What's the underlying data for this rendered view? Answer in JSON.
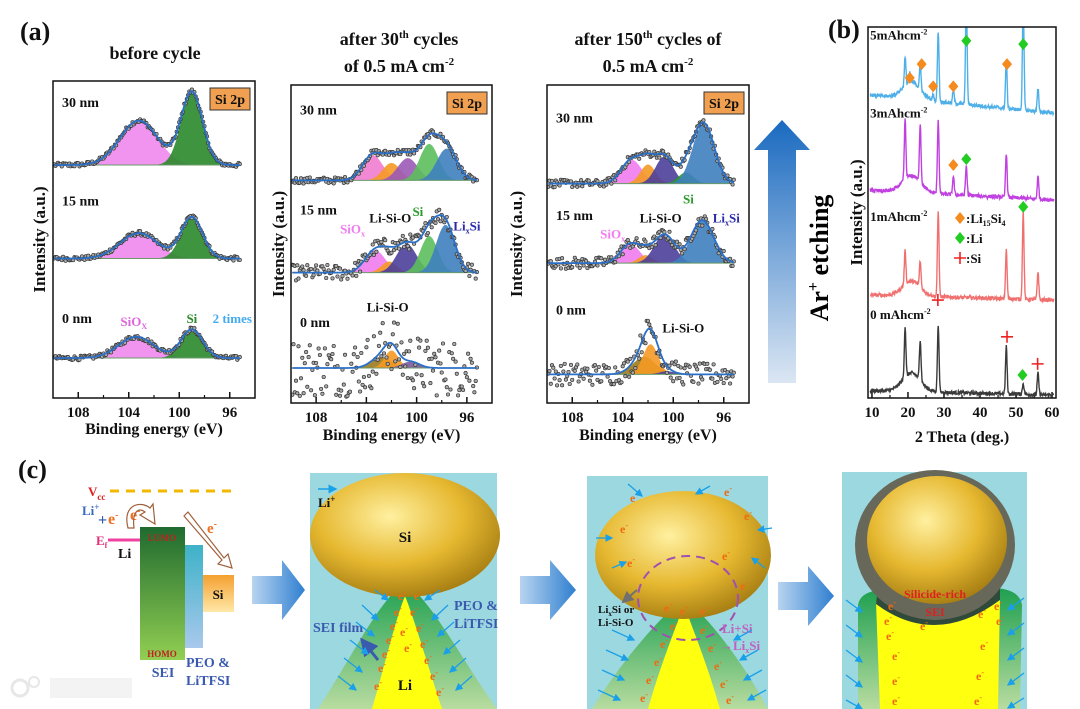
{
  "figure": {
    "panel_labels": {
      "a": "(a)",
      "b": "(b)",
      "c": "(c)"
    },
    "ar_etching": {
      "main": "Ar",
      "sup": "+",
      "rest": " etching"
    },
    "watermark": "大数跨境"
  },
  "chart_data": [
    {
      "type": "line",
      "id": "xps-before-cycle",
      "title_lines": [
        {
          "pre": "before cycle",
          "sup": "",
          "post": ""
        }
      ],
      "badge": "Si 2p",
      "xlabel": "Binding energy (eV)",
      "ylabel": "Intensity (a.u.)",
      "xlim": [
        110,
        94
      ],
      "ylim": [
        0,
        10
      ],
      "xticks": [
        108,
        104,
        100,
        96
      ],
      "xminor": [
        106,
        102,
        98
      ],
      "spectra": [
        {
          "label": "30 nm",
          "offset": 7.35,
          "noise": 0.07,
          "components": [
            {
              "name": "SiOx",
              "center": 103.2,
              "height": 1.4,
              "sigma": 1.5,
              "color": "#ee88ee"
            },
            {
              "name": "Si",
              "center": 99.0,
              "height": 2.3,
              "sigma": 0.85,
              "color": "#2a8a2a"
            }
          ]
        },
        {
          "label": "15 nm",
          "offset": 4.4,
          "noise": 0.07,
          "components": [
            {
              "name": "SiOx",
              "center": 103.2,
              "height": 0.8,
              "sigma": 1.5,
              "color": "#ee88ee"
            },
            {
              "name": "Si",
              "center": 99.0,
              "height": 1.3,
              "sigma": 0.85,
              "color": "#2a8a2a"
            }
          ]
        },
        {
          "label": "0 nm",
          "offset": 1.26,
          "noise": 0.07,
          "components": [
            {
              "name": "SiOx",
              "center": 103.4,
              "height": 0.67,
              "sigma": 1.4,
              "color": "#ee88ee"
            },
            {
              "name": "Si",
              "center": 99.0,
              "height": 0.9,
              "sigma": 0.85,
              "color": "#2a8a2a"
            }
          ]
        }
      ],
      "annotations": [
        {
          "text": "SiO",
          "sub": "X",
          "x": 103.6,
          "y": 2.4,
          "color": "#dd66dd"
        },
        {
          "text": "Si",
          "sub": "",
          "x": 99.0,
          "y": 2.5,
          "color": "#2a8a2a"
        },
        {
          "text": "2 times",
          "sub": "",
          "x": 95.8,
          "y": 2.5,
          "color": "#44aaee"
        }
      ]
    },
    {
      "type": "line",
      "id": "xps-after-30-cycles",
      "title_lines": [
        {
          "pre": "after 30",
          "sup": "th",
          "post": " cycles"
        },
        {
          "pre": "of 0.5 mA cm",
          "sup": "-2",
          "post": ""
        }
      ],
      "badge": "Si 2p",
      "xlabel": "Binding energy (eV)",
      "ylabel": "Intensity (a.u.)",
      "xlim": [
        110,
        94
      ],
      "ylim": [
        0,
        10
      ],
      "xticks": [
        108,
        104,
        100,
        96
      ],
      "xminor": [
        106,
        102,
        98
      ],
      "spectra": [
        {
          "label": "30 nm",
          "offset": 7.0,
          "noise": 0.1,
          "components": [
            {
              "name": "SiOx",
              "center": 103.5,
              "height": 0.8,
              "sigma": 0.8,
              "color": "#f07cd0"
            },
            {
              "name": "Li-Si-O",
              "center": 102.0,
              "height": 0.55,
              "sigma": 0.7,
              "color": "#f59a23"
            },
            {
              "name": "Li-Si-O-2",
              "center": 100.7,
              "height": 0.7,
              "sigma": 0.8,
              "color": "#9b59b6"
            },
            {
              "name": "Si",
              "center": 99.0,
              "height": 1.15,
              "sigma": 0.75,
              "color": "#5cbf5c"
            },
            {
              "name": "LixSi",
              "center": 97.6,
              "height": 1.0,
              "sigma": 0.8,
              "color": "#3f7fbf"
            }
          ]
        },
        {
          "label": "15 nm",
          "offset": 4.1,
          "noise": 0.25,
          "components": [
            {
              "name": "SiOx",
              "center": 103.3,
              "height": 0.7,
              "sigma": 0.8,
              "color": "#f07cf0"
            },
            {
              "name": "Li-Si-O",
              "center": 102.2,
              "height": 0.35,
              "sigma": 0.6,
              "color": "#f59a23"
            },
            {
              "name": "Li-Si-O-2",
              "center": 100.8,
              "height": 0.9,
              "sigma": 0.8,
              "color": "#4b3f9a"
            },
            {
              "name": "Si",
              "center": 99.0,
              "height": 1.15,
              "sigma": 0.7,
              "color": "#5cbf5c"
            },
            {
              "name": "LixSi",
              "center": 97.7,
              "height": 1.5,
              "sigma": 0.75,
              "color": "#3f7fbf"
            }
          ]
        },
        {
          "label": "0 nm",
          "offset": 1.1,
          "noise": 0.9,
          "components": [
            {
              "name": "Li-Si-O-1",
              "center": 102.8,
              "height": 0.35,
              "sigma": 0.8,
              "color": "#9c7a1e"
            },
            {
              "name": "Li-Si-O",
              "center": 102.0,
              "height": 0.55,
              "sigma": 0.55,
              "color": "#f59a23"
            },
            {
              "name": "Li-Si-O-2",
              "center": 100.5,
              "height": 0.2,
              "sigma": 0.7,
              "color": "#7a5a9a"
            }
          ]
        }
      ],
      "annotations": [
        {
          "text": "SiO",
          "sub": "x",
          "x": 105.1,
          "y": 5.45,
          "color": "#f07cf0"
        },
        {
          "text": "Li-Si-O",
          "sub": "",
          "x": 102.1,
          "y": 5.8,
          "color": "#111111"
        },
        {
          "text": "Si",
          "sub": "",
          "x": 99.9,
          "y": 6.0,
          "color": "#2a9a2a"
        },
        {
          "text": "Li",
          "sub": "x",
          "tail": "Si",
          "x": 96.0,
          "y": 5.55,
          "color": "#2a2aaa"
        },
        {
          "text": "Li-Si-O",
          "sub": "",
          "x": 102.3,
          "y": 3.0,
          "color": "#111111"
        }
      ]
    },
    {
      "type": "line",
      "id": "xps-after-150-cycles",
      "title_lines": [
        {
          "pre": "after 150",
          "sup": "th",
          "post": " cycles of"
        },
        {
          "pre": "0.5 mA cm",
          "sup": "-2",
          "post": ""
        }
      ],
      "badge": "Si 2p",
      "xlabel": "Binding energy (eV)",
      "ylabel": "Intensity (a.u.)",
      "xlim": [
        110,
        94
      ],
      "ylim": [
        0,
        10
      ],
      "xticks": [
        108,
        104,
        100,
        96
      ],
      "xminor": [
        106,
        102,
        98
      ],
      "spectra": [
        {
          "label": "30 nm",
          "offset": 6.9,
          "noise": 0.12,
          "components": [
            {
              "name": "SiOx",
              "center": 103.3,
              "height": 0.75,
              "sigma": 0.8,
              "color": "#f07cf0"
            },
            {
              "name": "Li-Si-O",
              "center": 102.0,
              "height": 0.6,
              "sigma": 0.6,
              "color": "#f59a23"
            },
            {
              "name": "Li-Si-O-2",
              "center": 100.7,
              "height": 0.85,
              "sigma": 0.7,
              "color": "#4b3f9a"
            },
            {
              "name": "Si",
              "center": 99.0,
              "height": 0.35,
              "sigma": 0.6,
              "color": "#2a9a2a"
            },
            {
              "name": "LixSi",
              "center": 97.6,
              "height": 1.9,
              "sigma": 0.85,
              "color": "#3f7fbf"
            }
          ]
        },
        {
          "label": "15 nm",
          "offset": 4.4,
          "noise": 0.18,
          "components": [
            {
              "name": "SiOx",
              "center": 103.4,
              "height": 0.6,
              "sigma": 0.75,
              "color": "#f07cf0"
            },
            {
              "name": "Li-Si-O",
              "center": 102.2,
              "height": 0.25,
              "sigma": 0.55,
              "color": "#f59a23"
            },
            {
              "name": "Li-Si-O-2",
              "center": 100.7,
              "height": 0.9,
              "sigma": 0.8,
              "color": "#4b3f9a"
            },
            {
              "name": "LixSi",
              "center": 97.7,
              "height": 1.35,
              "sigma": 0.9,
              "color": "#3f7fbf"
            }
          ]
        },
        {
          "label": "0 nm",
          "offset": 0.9,
          "noise": 0.35,
          "components": [
            {
              "name": "Li-Si-O-1",
              "center": 102.3,
              "height": 0.55,
              "sigma": 0.9,
              "color": "#9c7a1e"
            },
            {
              "name": "Li-Si-O",
              "center": 101.8,
              "height": 0.95,
              "sigma": 0.6,
              "color": "#f59a23"
            },
            {
              "name": "Li-Si-O-2",
              "center": 100.5,
              "height": 0.1,
              "sigma": 0.6,
              "color": "#4b3f9a"
            }
          ]
        }
      ],
      "annotations": [
        {
          "text": "SiO",
          "sub": "x",
          "x": 104.8,
          "y": 5.3,
          "color": "#f07cf0"
        },
        {
          "text": "Li-Si-O",
          "sub": "",
          "x": 101.0,
          "y": 5.8,
          "color": "#111111"
        },
        {
          "text": "Si",
          "sub": "",
          "x": 98.8,
          "y": 6.4,
          "color": "#2a9a2a"
        },
        {
          "text": "Li",
          "sub": "x",
          "tail": "Si",
          "x": 95.8,
          "y": 5.8,
          "color": "#2a2aaa"
        },
        {
          "text": "Li-Si-O",
          "sub": "",
          "x": 99.2,
          "y": 2.35,
          "color": "#111111"
        }
      ]
    },
    {
      "type": "line",
      "id": "xrd",
      "xlabel": "2 Theta (deg.)",
      "ylabel": "Intensity (a.u.)",
      "xlim": [
        8.9,
        61.1
      ],
      "ylim": [
        0,
        10
      ],
      "xticks": [
        10,
        20,
        30,
        40,
        50,
        60
      ],
      "xminor": [
        15,
        25,
        35,
        45,
        55
      ],
      "series": [
        {
          "name": "0 mAhcm",
          "sup": "-2",
          "label_x": 9.5,
          "label_y": 2.26,
          "color": "#3a3a3a",
          "base_left": 0.2,
          "base_right": 0.08,
          "hump": 0.5,
          "peaks": [
            [
              19.2,
              1.35
            ],
            [
              23.4,
              1.1
            ],
            [
              28.4,
              1.8
            ],
            [
              47.3,
              1.27
            ],
            [
              52.0,
              0.3
            ],
            [
              56.1,
              0.57
            ]
          ]
        },
        {
          "name": "1mAhcm",
          "sup": "-2",
          "label_x": 9.5,
          "label_y": 4.9,
          "color": "#f07070",
          "base_left": 2.78,
          "base_right": 2.64,
          "hump": 0.4,
          "peaks": [
            [
              19.2,
              0.9
            ],
            [
              23.4,
              0.7
            ],
            [
              28.4,
              2.3
            ],
            [
              47.3,
              1.3
            ],
            [
              52.0,
              2.35
            ],
            [
              56.1,
              0.75
            ]
          ]
        },
        {
          "name": "3mAhcm",
          "sup": "-2",
          "label_x": 9.5,
          "label_y": 7.7,
          "color": "#c040e0",
          "base_left": 5.6,
          "base_right": 5.34,
          "hump": 0.45,
          "peaks": [
            [
              19.2,
              1.6
            ],
            [
              23.4,
              1.6
            ],
            [
              28.4,
              2.0
            ],
            [
              32.6,
              0.5
            ],
            [
              36.2,
              0.8
            ],
            [
              47.3,
              1.2
            ],
            [
              56.1,
              0.6
            ]
          ]
        },
        {
          "name": "5mAhcm",
          "sup": "-2",
          "label_x": 9.5,
          "label_y": 9.8,
          "color": "#4fb0e8",
          "base_left": 8.17,
          "base_right": 7.68,
          "hump": 0.45,
          "peaks": [
            [
              19.2,
              0.75
            ],
            [
              20.5,
              0.25
            ],
            [
              23.4,
              0.7
            ],
            [
              27.0,
              0.15
            ],
            [
              28.4,
              1.9
            ],
            [
              32.6,
              0.35
            ],
            [
              36.2,
              3.0
            ],
            [
              47.3,
              1.3
            ],
            [
              52.0,
              3.0
            ],
            [
              56.1,
              0.6
            ]
          ]
        }
      ],
      "markers": [
        {
          "type": "diamond",
          "color": "#f58a1f",
          "points": [
            [
              20.5,
              8.63
            ],
            [
              23.8,
              9.0
            ],
            [
              27.0,
              8.4
            ],
            [
              32.6,
              8.4
            ],
            [
              47.5,
              9.0
            ],
            [
              32.6,
              6.28
            ]
          ]
        },
        {
          "type": "diamond",
          "color": "#22cc22",
          "points": [
            [
              36.2,
              9.63
            ],
            [
              52.0,
              9.54
            ],
            [
              36.2,
              6.44
            ],
            [
              52.0,
              5.15
            ],
            [
              51.8,
              0.62
            ]
          ]
        },
        {
          "type": "plus",
          "color": "#ee2222",
          "points": [
            [
              28.3,
              2.64
            ],
            [
              47.5,
              1.65
            ],
            [
              56.0,
              0.92
            ]
          ]
        }
      ],
      "legend": [
        {
          "marker": "diamond",
          "color": "#f58a1f",
          "text": ":Li",
          "sub1": "15",
          "mid": "Si",
          "sub2": "4"
        },
        {
          "marker": "diamond",
          "color": "#22cc22",
          "text": ":Li",
          "sub1": "",
          "mid": "",
          "sub2": ""
        },
        {
          "marker": "plus",
          "color": "#ee2222",
          "text": ":Si",
          "sub1": "",
          "mid": "",
          "sub2": ""
        }
      ],
      "legend_position": "center-right"
    }
  ],
  "diagram": {
    "vcc": "V",
    "vcc_sub": "cc",
    "li_plus": "Li",
    "li_plus_sup": "+",
    "plus_sign": "+",
    "electron": "e",
    "electron_sup": "-",
    "ef": "E",
    "ef_sub": "f",
    "li": "Li",
    "lumo": "LUMO",
    "homo": "HOMO",
    "sei": "SEI",
    "peo": "PEO &",
    "litfsi": "LiTFSI",
    "si": "Si",
    "p2_li_ion": "Li",
    "p2_li_ion_sup": "+",
    "p2_sei_film": "SEI film",
    "p2_peo": "PEO &",
    "p2_litfsi": "LiTFSI",
    "p3_lixsi_pre": "Li",
    "p3_lixsi_sub": "x",
    "p3_lixsi_post": "Si or",
    "p3_lisio": "Li-Si-O",
    "p3_reaction1": "Li+Si",
    "p3_reaction2_pre": "→Li",
    "p3_reaction2_sub": "x",
    "p3_reaction2_post": "Si",
    "p4_silicide": "Silicide-rich",
    "p4_sei": "SEI"
  }
}
